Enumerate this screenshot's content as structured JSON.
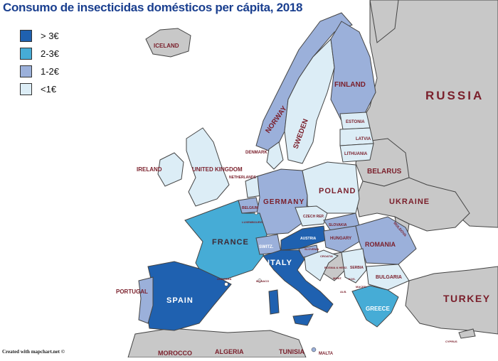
{
  "title": "Consumo de insecticidas domésticos per cápita, 2018",
  "legend": [
    {
      "label": "> 3€",
      "color": "#1f61b0"
    },
    {
      "label": "2-3€",
      "color": "#46acd6"
    },
    {
      "label": "1-2€",
      "color": "#9bb0da"
    },
    {
      "label": "<1€",
      "color": "#dcedf6"
    }
  ],
  "credit": "Created with mapchart.net ©",
  "countries": {
    "iceland": "ICELAND",
    "norway": "NORWAY",
    "sweden": "SWEDEN",
    "finland": "FINLAND",
    "russia": "RUSSIA",
    "estonia": "ESTONIA",
    "latvia": "LATVIA",
    "lithuania": "LITHUANIA",
    "denmark": "DENMARK",
    "ireland": "IRELAND",
    "uk": "UNITED KINGDOM",
    "netherlands": "NETHERLANDS",
    "belarus": "BELARUS",
    "poland": "POLAND",
    "germany": "GERMANY",
    "belgium": "BELGIUM",
    "luxembourg": "LUXEMBOURG",
    "ukraine": "UKRAINE",
    "czech": "CZECH REP.",
    "slovakia": "SLOVAKIA",
    "moldova": "MOLDOVA",
    "france": "FRANCE",
    "switz": "SWITZ.",
    "austria": "AUSTRIA",
    "hungary": "HUNGARY",
    "romania": "ROMANIA",
    "slovenia": "SLOVENIA",
    "croatia": "CROATIA",
    "bosnia": "BOSNIA & HERZ.",
    "serbia": "SERBIA",
    "italy": "ITALY",
    "monaco": "MONACO",
    "andorra": "ANDORRA",
    "montenegro": "MONT.",
    "kosovo": "KOS.",
    "bulgaria": "BULGARIA",
    "macedonia": "MACED.",
    "albania": "ALB.",
    "portugal": "PORTUGAL",
    "spain": "SPAIN",
    "greece": "GREECE",
    "turkey": "TURKEY",
    "cyprus": "CYPRUS",
    "morocco": "MOROCCO",
    "algeria": "ALGERIA",
    "tunisia": "TUNISIA",
    "malta": "MALTA"
  },
  "fills": {
    "gt3": "#1f61b0",
    "r23": "#46acd6",
    "r12": "#9bb0da",
    "lt1": "#dcedf6",
    "none": "#c8c8c8",
    "sea": "#ffffff"
  },
  "categories": {
    "SPAIN": "> 3€",
    "ITALY": "> 3€",
    "AUSTRIA": "> 3€",
    "FRANCE": "2-3€",
    "GREECE": "2-3€",
    "FINLAND": "1-2€",
    "NORWAY": "1-2€",
    "GERMANY": "1-2€",
    "HUNGARY": "1-2€",
    "ROMANIA": "1-2€",
    "PORTUGAL": "1-2€",
    "SLOVENIA": "1-2€",
    "BELGIUM": "1-2€",
    "SWITZ.": "1-2€",
    "SLOVAKIA": "1-2€",
    "SWEDEN": "<1€",
    "POLAND": "<1€",
    "UNITED KINGDOM": "<1€",
    "CZECH REP.": "<1€",
    "BULGARIA": "<1€",
    "DENMARK": "<1€",
    "NETHERLANDS": "<1€",
    "IRELAND": "<1€",
    "CROATIA": "<1€",
    "SERBIA": "<1€",
    "ESTONIA": "<1€",
    "LATVIA": "<1€",
    "LITHUANIA": "<1€"
  }
}
